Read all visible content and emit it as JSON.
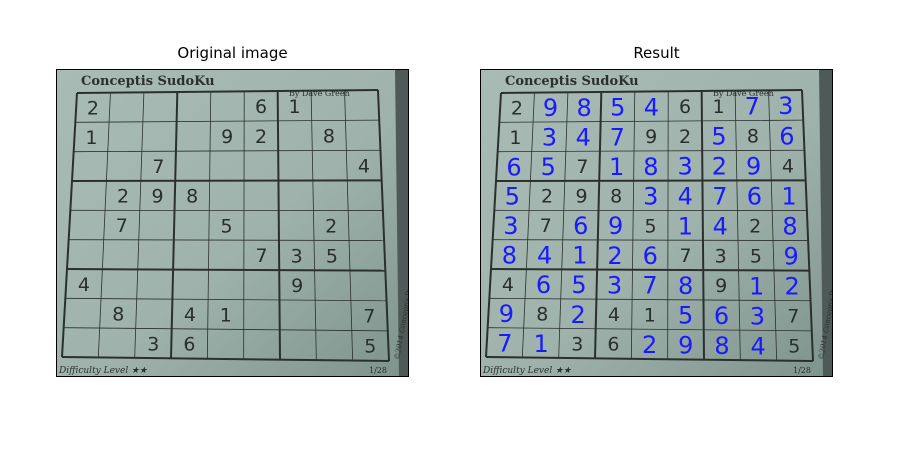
{
  "figure": {
    "left_title": "Original image",
    "right_title": "Result"
  },
  "newspaper": {
    "brand": "Conceptis SudoKu",
    "byline": "By Dave Green",
    "difficulty": "Difficulty Level ★★",
    "page_ref": "1/28",
    "side_credit": "©2014 Conceptis Puzzles, Dist. by King Features Syndicate, Inc."
  },
  "puzzle_given": [
    [
      2,
      0,
      0,
      0,
      0,
      6,
      1,
      0,
      0
    ],
    [
      1,
      0,
      0,
      0,
      9,
      2,
      0,
      8,
      0
    ],
    [
      0,
      0,
      7,
      0,
      0,
      0,
      0,
      0,
      4
    ],
    [
      0,
      2,
      9,
      8,
      0,
      0,
      0,
      0,
      0
    ],
    [
      0,
      7,
      0,
      0,
      5,
      0,
      0,
      2,
      0
    ],
    [
      0,
      0,
      0,
      0,
      0,
      7,
      3,
      5,
      0
    ],
    [
      4,
      0,
      0,
      0,
      0,
      0,
      9,
      0,
      0
    ],
    [
      0,
      8,
      0,
      4,
      1,
      0,
      0,
      0,
      7
    ],
    [
      0,
      0,
      3,
      6,
      0,
      0,
      0,
      0,
      5
    ]
  ],
  "solution": [
    [
      2,
      9,
      8,
      5,
      4,
      6,
      1,
      7,
      3
    ],
    [
      1,
      3,
      4,
      7,
      9,
      2,
      5,
      8,
      6
    ],
    [
      6,
      5,
      7,
      1,
      8,
      3,
      2,
      9,
      4
    ],
    [
      5,
      2,
      9,
      8,
      3,
      4,
      7,
      6,
      1
    ],
    [
      3,
      7,
      6,
      9,
      5,
      1,
      4,
      2,
      8
    ],
    [
      8,
      4,
      1,
      2,
      6,
      7,
      3,
      5,
      9
    ],
    [
      4,
      6,
      5,
      3,
      7,
      8,
      9,
      1,
      2
    ],
    [
      9,
      8,
      2,
      4,
      1,
      5,
      6,
      3,
      7
    ],
    [
      7,
      1,
      3,
      6,
      2,
      9,
      8,
      4,
      5
    ]
  ],
  "colors": {
    "paper": "#9fb2ac",
    "paper_dark": "#7f938d",
    "grid": "#2b302e",
    "given_digit": "#2a2e2d",
    "solved_digit": "#1a1aff"
  }
}
